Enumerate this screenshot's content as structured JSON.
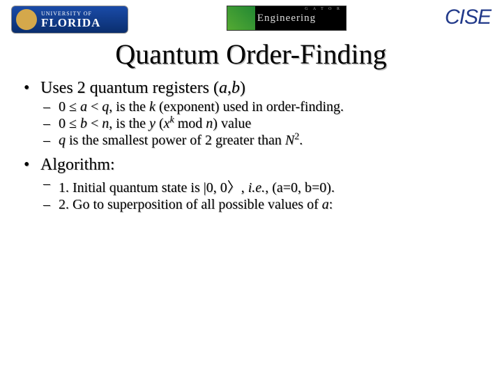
{
  "header": {
    "uf": {
      "top": "UNIVERSITY OF",
      "bottom": "FLORIDA"
    },
    "eng": {
      "label": "Engineering",
      "small": "G A T O R"
    },
    "cise": "CISE"
  },
  "title": "Quantum Order-Finding",
  "bullets": {
    "b1": {
      "pre": "Uses 2 quantum registers (",
      "a": "a",
      "comma": ",",
      "b": "b",
      "post": ")"
    },
    "b1sub": {
      "s1": {
        "t1": "0 ≤ ",
        "a": "a",
        "t2": " < ",
        "q": "q",
        "t3": ", is the ",
        "k": "k",
        "t4": " (exponent) used in order-finding."
      },
      "s2": {
        "t1": "0 ≤ ",
        "b": "b",
        "t2": " < ",
        "n": "n",
        "t3": ", is the ",
        "y": "y",
        "t4": " (",
        "x": "x",
        "exp": "k",
        "t5": " mod ",
        "n2": "n",
        "t6": ") value"
      },
      "s3": {
        "q": "q",
        "t1": " is the smallest power of 2 greater than ",
        "N": "N",
        "exp": "2",
        "t2": "."
      }
    },
    "b2": "Algorithm:",
    "b2sub": {
      "s1": {
        "t1": "1. Initial quantum state is |0, 0〉, ",
        "ie": "i.e.",
        "t2": ", (a=0, b=0)."
      },
      "s2": {
        "t1": "2. Go to superposition of all possible values of ",
        "a": "a",
        "t2": ":"
      }
    }
  },
  "colors": {
    "bg": "#ffffff",
    "text": "#000000",
    "uf_blue": "#1a4ba8",
    "cise_blue": "#223a8a",
    "shadow": "#bbbbbb"
  }
}
